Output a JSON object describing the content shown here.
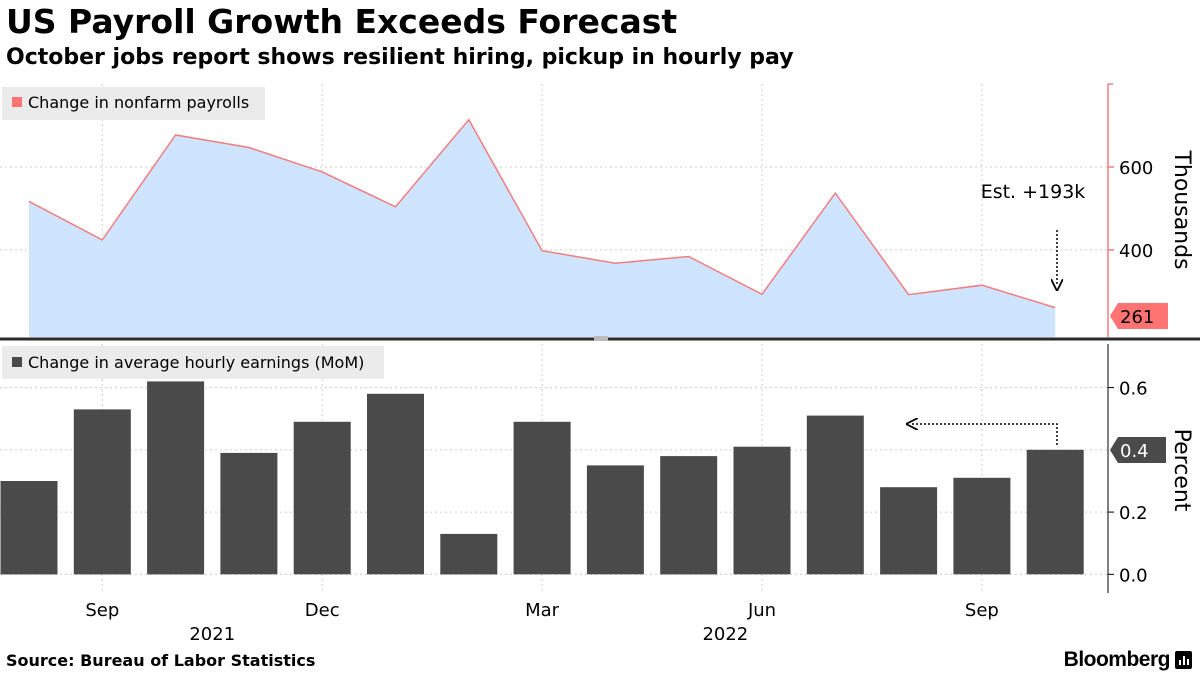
{
  "header": {
    "title": "US Payroll Growth Exceeds Forecast",
    "subtitle": "October jobs report shows resilient hiring, pickup in hourly pay"
  },
  "footer": {
    "source": "Source: Bureau of Labor Statistics",
    "brand": "Bloomberg"
  },
  "colors": {
    "area_fill": "#cfe5ff",
    "area_line": "#f27d80",
    "bar": "#4a4a4a",
    "label_tag": "#ff7373",
    "tag_grey": "#4a4a4a",
    "grid": "#cccccc",
    "axis_accent": "#f27d80"
  },
  "chart_data": [
    {
      "type": "area",
      "legend": "Change in nonfarm payrolls",
      "x": [
        "2021-08",
        "2021-09",
        "2021-10",
        "2021-11",
        "2021-12",
        "2022-01",
        "2022-02",
        "2022-03",
        "2022-04",
        "2022-05",
        "2022-06",
        "2022-07",
        "2022-08",
        "2022-09",
        "2022-10"
      ],
      "values": [
        517,
        424,
        677,
        647,
        588,
        504,
        714,
        398,
        368,
        384,
        293,
        537,
        292,
        315,
        261
      ],
      "ylabel": "Thousands",
      "yticks": [
        400,
        600
      ],
      "ylim": [
        190,
        800
      ],
      "last_value_label": "261",
      "annotation": "Est. +193k",
      "legend_position": "top-left"
    },
    {
      "type": "bar",
      "legend": "Change in average hourly earnings (MoM)",
      "x": [
        "2021-08",
        "2021-09",
        "2021-10",
        "2021-11",
        "2021-12",
        "2022-01",
        "2022-02",
        "2022-03",
        "2022-04",
        "2022-05",
        "2022-06",
        "2022-07",
        "2022-08",
        "2022-09",
        "2022-10"
      ],
      "values": [
        0.3,
        0.53,
        0.62,
        0.39,
        0.49,
        0.58,
        0.13,
        0.49,
        0.35,
        0.38,
        0.41,
        0.51,
        0.28,
        0.31,
        0.4
      ],
      "ylabel": "Percent",
      "yticks": [
        "0.0",
        "0.2",
        "0.6"
      ],
      "ylim": [
        -0.06,
        0.74
      ],
      "last_value_label": "0.4",
      "legend_position": "top-left"
    }
  ],
  "x_axis": {
    "month_labels": [
      {
        "label": "Sep",
        "month_index": 1
      },
      {
        "label": "Dec",
        "month_index": 4
      },
      {
        "label": "Mar",
        "month_index": 7
      },
      {
        "label": "Jun",
        "month_index": 10
      },
      {
        "label": "Sep",
        "month_index": 13
      }
    ],
    "year_labels": [
      {
        "label": "2021",
        "month_index": 2.5
      },
      {
        "label": "2022",
        "month_index": 9.5
      }
    ]
  }
}
